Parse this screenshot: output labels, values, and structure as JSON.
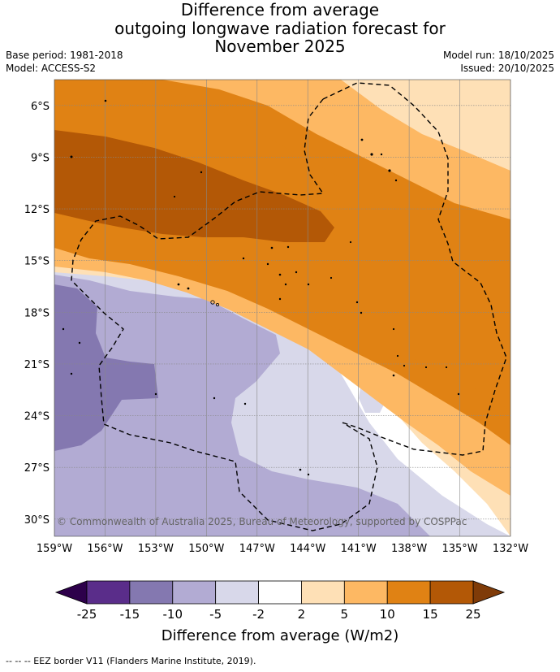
{
  "header": {
    "title_line1": "Difference from average",
    "title_line2": "outgoing longwave radiation forecast for",
    "title_line3": "November 2025",
    "base_period": "Base period: 1981-2018",
    "model": "Model: ACCESS-S2",
    "model_run": "Model run: 18/10/2025",
    "issued": "Issued: 20/10/2025"
  },
  "chart_data": {
    "type": "heatmap",
    "title": "Difference from average outgoing longwave radiation forecast for November 2025",
    "xlim": [
      -159,
      -132
    ],
    "ylim": [
      -31,
      -4.5
    ],
    "x_ticks": [
      {
        "value": -159,
        "label": "159°W"
      },
      {
        "value": -156,
        "label": "156°W"
      },
      {
        "value": -153,
        "label": "153°W"
      },
      {
        "value": -150,
        "label": "150°W"
      },
      {
        "value": -147,
        "label": "147°W"
      },
      {
        "value": -144,
        "label": "144°W"
      },
      {
        "value": -141,
        "label": "141°W"
      },
      {
        "value": -138,
        "label": "138°W"
      },
      {
        "value": -135,
        "label": "135°W"
      },
      {
        "value": -132,
        "label": "132°W"
      }
    ],
    "y_ticks": [
      {
        "value": -6,
        "label": "6°S"
      },
      {
        "value": -9,
        "label": "9°S"
      },
      {
        "value": -12,
        "label": "12°S"
      },
      {
        "value": -15,
        "label": "15°S"
      },
      {
        "value": -18,
        "label": "18°S"
      },
      {
        "value": -21,
        "label": "21°S"
      },
      {
        "value": -24,
        "label": "24°S"
      },
      {
        "value": -27,
        "label": "27°S"
      },
      {
        "value": -30,
        "label": "30°S"
      }
    ],
    "colorbar": {
      "title": "Difference from average (W/m2)",
      "tick_labels": [
        "-25",
        "-15",
        "-10",
        "-5",
        "-2",
        "2",
        "5",
        "10",
        "15",
        "25"
      ],
      "colors": [
        "#5a2d8a",
        "#8478b0",
        "#b2abd3",
        "#d8d8ea",
        "#ffffff",
        "#fee0b6",
        "#fdb863",
        "#e08214",
        "#b35806"
      ],
      "under_color": "#2d004b",
      "over_color": "#7f3b08"
    },
    "band_colors": {
      "strong_neg": "#8478b0",
      "mid_neg": "#b2abd3",
      "weak_neg": "#d8d8ea",
      "neutral": "#ffffff",
      "weak_pos": "#fee0b6",
      "mid_pos": "#fdb863",
      "strong_pos": "#e08214",
      "max_pos": "#b35806"
    },
    "copyright": "© Commonwealth of Australia 2025, Bureau of Meteorology, supported by COSPPac",
    "legend_note": "-- -- -- EEZ border V11 (Flanders Marine Institute, 2019)."
  }
}
